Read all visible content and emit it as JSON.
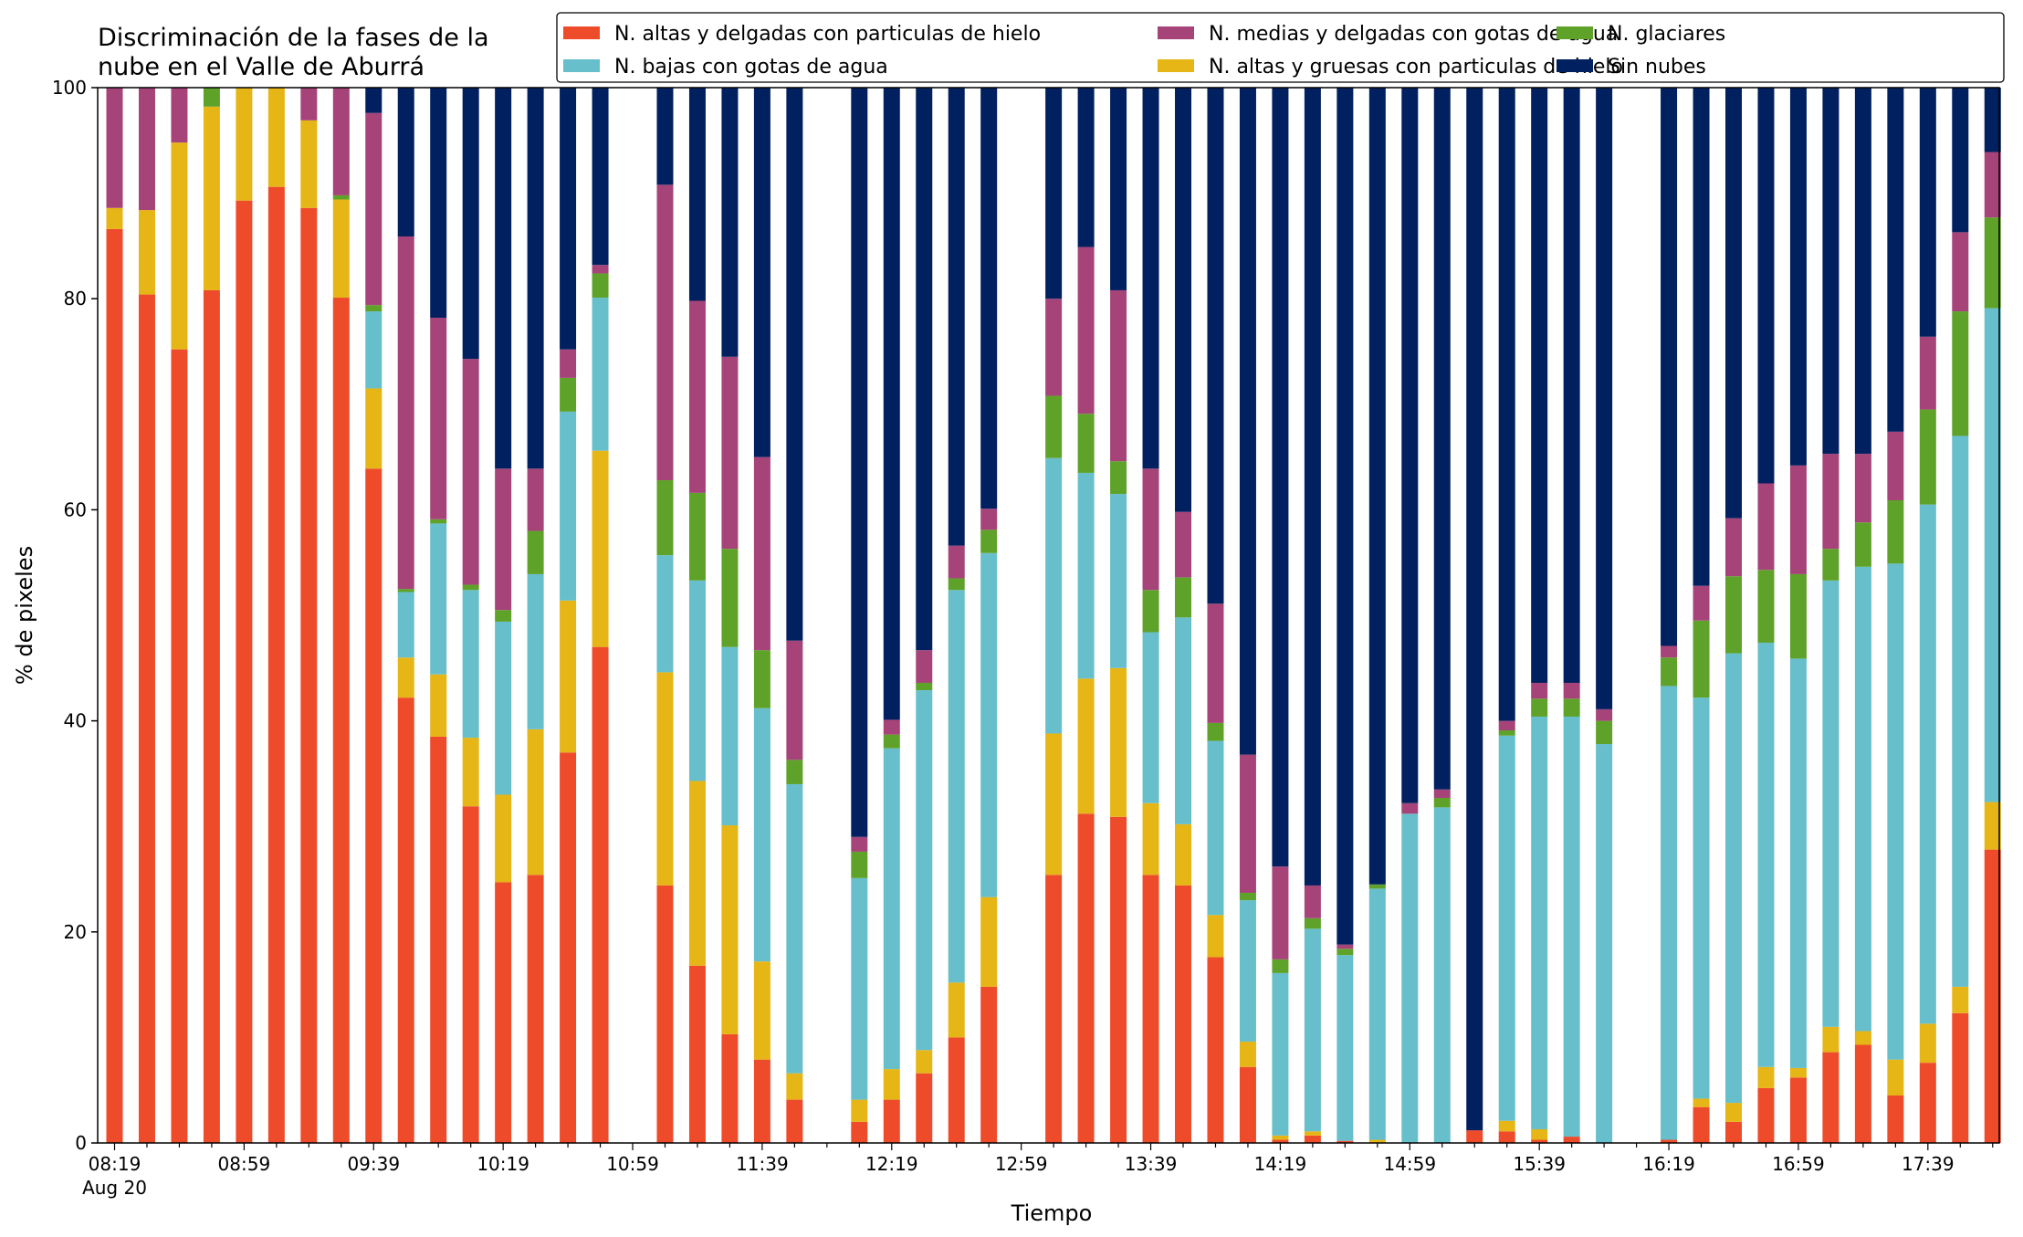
{
  "chart_data": {
    "type": "bar",
    "stacked": true,
    "title": [
      "Discriminación de la fases de la",
      "nube en el Valle de Aburrá"
    ],
    "xlabel": "Tiempo",
    "ylabel": "% de pixeles",
    "ylim": [
      0,
      100
    ],
    "yticks": [
      0,
      20,
      40,
      60,
      80,
      100
    ],
    "xticks": [
      "08:19",
      "08:59",
      "09:39",
      "10:19",
      "10:59",
      "11:39",
      "12:19",
      "12:59",
      "13:39",
      "14:19",
      "14:59",
      "15:39",
      "16:19",
      "16:59",
      "17:39"
    ],
    "xtick_sublabel": "Aug 20",
    "x_start": "08:19",
    "x_step_minutes": 10,
    "slot_count": 59,
    "grid": false,
    "legend_position": "top-right",
    "series": [
      {
        "name": "N. altas y delgadas con particulas de hielo",
        "color": "#ee4b2b"
      },
      {
        "name": "N. altas y gruesas con particulas de hielo",
        "color": "#e6b516"
      },
      {
        "name": "N. bajas con gotas de agua",
        "color": "#67bfcc"
      },
      {
        "name": "N. glaciares",
        "color": "#5fa22a"
      },
      {
        "name": "N. medias y delgadas con gotas de agua",
        "color": "#a64479"
      },
      {
        "name": "Sin nubes",
        "color": "#002060"
      }
    ],
    "legend_order": [
      0,
      2,
      4,
      1,
      3,
      5
    ],
    "bars": [
      {
        "time": "08:19",
        "values": [
          86.6,
          2,
          0,
          0,
          11.4,
          0
        ]
      },
      {
        "time": "08:29",
        "values": [
          80.4,
          8,
          0,
          0,
          11.6,
          0
        ]
      },
      {
        "time": "08:39",
        "values": [
          75.2,
          19.6,
          0,
          0,
          5.2,
          0
        ]
      },
      {
        "time": "08:49",
        "values": [
          80.8,
          17.4,
          0,
          1.8,
          0,
          0
        ]
      },
      {
        "time": "08:59",
        "values": [
          89.3,
          10.7,
          0,
          0,
          0,
          0
        ]
      },
      {
        "time": "09:09",
        "values": [
          90.6,
          9.4,
          0,
          0,
          0,
          0
        ]
      },
      {
        "time": "09:19",
        "values": [
          88.6,
          8.3,
          0,
          0,
          3.1,
          0
        ]
      },
      {
        "time": "09:29",
        "values": [
          80.1,
          9.3,
          0,
          0.4,
          10.2,
          0
        ]
      },
      {
        "time": "09:39",
        "values": [
          63.9,
          7.6,
          7.3,
          0.6,
          18.2,
          2.4
        ]
      },
      {
        "time": "09:49",
        "values": [
          42.2,
          3.8,
          6.2,
          0.3,
          33.4,
          14.1
        ]
      },
      {
        "time": "09:59",
        "values": [
          38.5,
          5.9,
          14.3,
          0.4,
          19.1,
          21.8
        ]
      },
      {
        "time": "10:09",
        "values": [
          31.9,
          6.5,
          14,
          0.5,
          21.4,
          25.7
        ]
      },
      {
        "time": "10:19",
        "values": [
          24.7,
          8.3,
          16.4,
          1.1,
          13.4,
          36.1
        ]
      },
      {
        "time": "10:29",
        "values": [
          25.4,
          13.8,
          14.7,
          4.1,
          5.9,
          36.1
        ]
      },
      {
        "time": "10:39",
        "values": [
          37,
          14.4,
          17.9,
          3.2,
          2.7,
          24.8
        ]
      },
      {
        "time": "10:49",
        "values": [
          47,
          18.6,
          14.5,
          2.3,
          0.8,
          16.8
        ]
      },
      {
        "time": "10:59",
        "values": [
          0,
          0,
          0,
          0,
          0,
          0
        ]
      },
      {
        "time": "11:09",
        "values": [
          24.4,
          20.2,
          11.1,
          7.1,
          28,
          9.2
        ]
      },
      {
        "time": "11:19",
        "values": [
          16.8,
          17.5,
          19,
          8.3,
          18.2,
          20.2
        ]
      },
      {
        "time": "11:29",
        "values": [
          10.3,
          19.8,
          16.9,
          9.3,
          18.2,
          25.5
        ]
      },
      {
        "time": "11:39",
        "values": [
          7.9,
          9.3,
          24,
          5.5,
          18.3,
          35
        ]
      },
      {
        "time": "11:49",
        "values": [
          4.1,
          2.5,
          27.4,
          2.3,
          11.3,
          52.4
        ]
      },
      {
        "time": "11:59",
        "values": [
          0,
          0,
          0,
          0,
          0,
          0
        ]
      },
      {
        "time": "12:09",
        "values": [
          2,
          2.1,
          21,
          2.5,
          1.4,
          71
        ]
      },
      {
        "time": "12:19",
        "values": [
          4.1,
          2.9,
          30.4,
          1.3,
          1.4,
          59.9
        ]
      },
      {
        "time": "12:29",
        "values": [
          6.6,
          2.2,
          34.1,
          0.7,
          3.1,
          53.3
        ]
      },
      {
        "time": "12:39",
        "values": [
          10,
          5.2,
          37.2,
          1.1,
          3.1,
          43.4
        ]
      },
      {
        "time": "12:49",
        "values": [
          14.8,
          8.5,
          32.6,
          2.2,
          2,
          39.9
        ]
      },
      {
        "time": "12:59",
        "values": [
          0,
          0,
          0,
          0,
          0,
          0
        ]
      },
      {
        "time": "13:09",
        "values": [
          25.4,
          13.4,
          26.1,
          5.9,
          9.2,
          20
        ]
      },
      {
        "time": "13:19",
        "values": [
          31.2,
          12.8,
          19.5,
          5.6,
          15.8,
          15.1
        ]
      },
      {
        "time": "13:29",
        "values": [
          30.9,
          14.1,
          16.5,
          3.1,
          16.2,
          19.2
        ]
      },
      {
        "time": "13:39",
        "values": [
          25.4,
          6.8,
          16.2,
          4,
          11.5,
          36.1
        ]
      },
      {
        "time": "13:49",
        "values": [
          24.4,
          5.8,
          19.6,
          3.8,
          6.2,
          40.2
        ]
      },
      {
        "time": "13:59",
        "values": [
          17.6,
          4,
          16.5,
          1.7,
          11.3,
          48.9
        ]
      },
      {
        "time": "14:09",
        "values": [
          7.2,
          2.4,
          13.4,
          0.7,
          13.1,
          63.2
        ]
      },
      {
        "time": "14:19",
        "values": [
          0.3,
          0.4,
          15.4,
          1.3,
          8.8,
          73.8
        ]
      },
      {
        "time": "14:29",
        "values": [
          0.7,
          0.4,
          19.2,
          1,
          3.1,
          75.6
        ]
      },
      {
        "time": "14:39",
        "values": [
          0.2,
          0,
          17.6,
          0.6,
          0.4,
          81.2
        ]
      },
      {
        "time": "14:49",
        "values": [
          0,
          0.3,
          23.8,
          0.4,
          0,
          75.5
        ]
      },
      {
        "time": "14:59",
        "values": [
          0,
          0,
          31.2,
          0,
          1,
          67.8
        ]
      },
      {
        "time": "15:09",
        "values": [
          0,
          0,
          31.8,
          0.9,
          0.8,
          66.5
        ]
      },
      {
        "time": "15:19",
        "values": [
          1.2,
          0,
          0,
          0,
          0,
          98.8
        ]
      },
      {
        "time": "15:29",
        "values": [
          1.1,
          1,
          36.5,
          0.5,
          0.9,
          60
        ]
      },
      {
        "time": "15:39",
        "values": [
          0.3,
          1,
          39.1,
          1.7,
          1.5,
          56.4
        ]
      },
      {
        "time": "15:49",
        "values": [
          0.6,
          0,
          39.8,
          1.7,
          1.5,
          56.4
        ]
      },
      {
        "time": "15:59",
        "values": [
          0,
          0,
          37.8,
          2.2,
          1.1,
          58.9
        ]
      },
      {
        "time": "16:09",
        "values": [
          0,
          0,
          0,
          0,
          0,
          0
        ]
      },
      {
        "time": "16:19",
        "values": [
          0.3,
          0,
          43,
          2.7,
          1.1,
          52.9
        ]
      },
      {
        "time": "16:29",
        "values": [
          3.4,
          0.8,
          38,
          7.3,
          3.3,
          47.2
        ]
      },
      {
        "time": "16:39",
        "values": [
          2,
          1.8,
          42.6,
          7.3,
          5.5,
          40.8
        ]
      },
      {
        "time": "16:49",
        "values": [
          5.2,
          2,
          40.2,
          6.9,
          8.2,
          37.5
        ]
      },
      {
        "time": "16:59",
        "values": [
          6.2,
          0.9,
          38.8,
          8,
          10.3,
          35.8
        ]
      },
      {
        "time": "17:09",
        "values": [
          8.6,
          2.4,
          42.3,
          3,
          9,
          34.7
        ]
      },
      {
        "time": "17:19",
        "values": [
          9.3,
          1.3,
          44,
          4.2,
          6.5,
          34.7
        ]
      },
      {
        "time": "17:29",
        "values": [
          4.5,
          3.4,
          47,
          6,
          6.5,
          32.6
        ]
      },
      {
        "time": "17:39",
        "values": [
          7.6,
          3.7,
          49.2,
          9,
          6.9,
          23.6
        ]
      },
      {
        "time": "17:49",
        "values": [
          12.3,
          2.5,
          52.2,
          11.8,
          7.5,
          13.7
        ]
      },
      {
        "time": "17:59",
        "values": [
          27.8,
          4.5,
          46.8,
          8.6,
          6.2,
          6.1
        ]
      }
    ]
  }
}
